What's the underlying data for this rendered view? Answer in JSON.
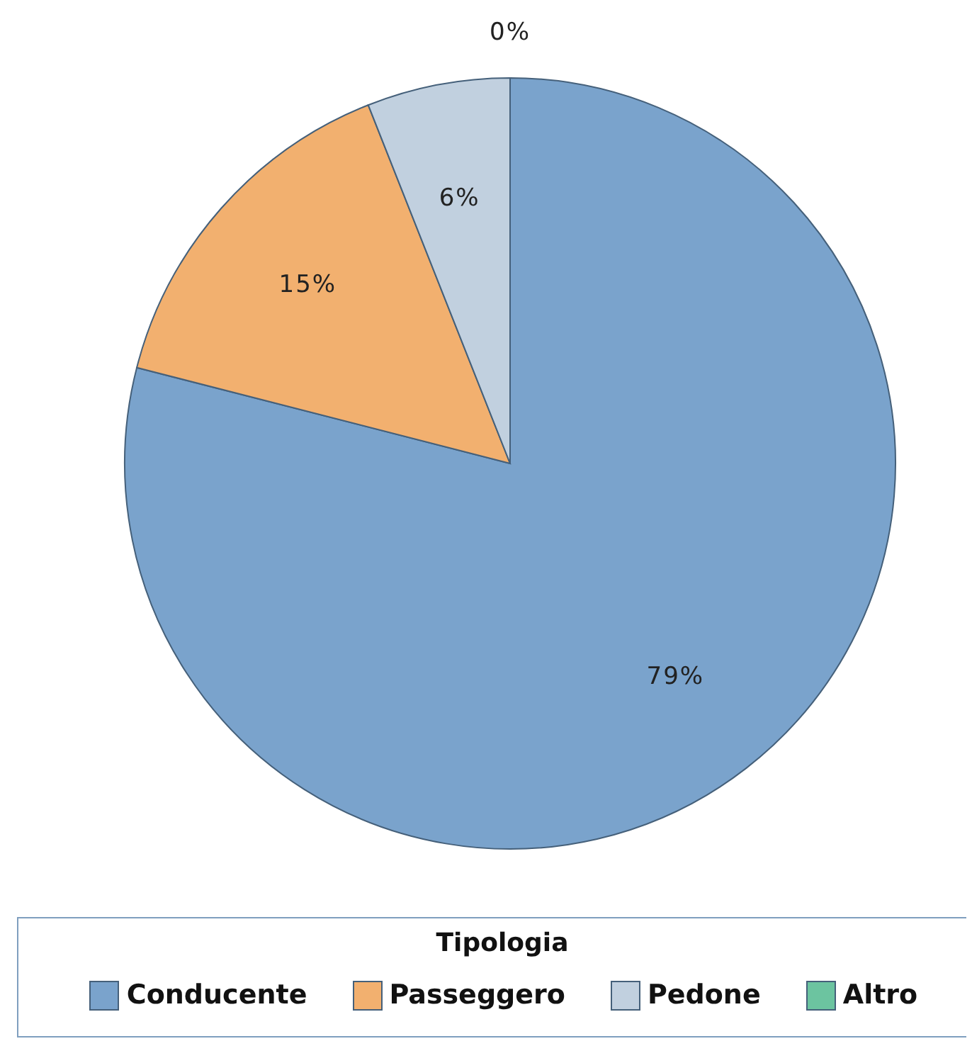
{
  "chart_data": {
    "type": "pie",
    "legend_title": "Tipologia",
    "categories": [
      "Conducente",
      "Passeggero",
      "Pedone",
      "Altro"
    ],
    "values": [
      79,
      15,
      6,
      0
    ],
    "colors": [
      "#7aa3cc",
      "#f2b06f",
      "#c1d0df",
      "#6cc4a0"
    ],
    "value_labels": [
      "79%",
      "15%",
      "6%",
      "0%"
    ],
    "legend": "bottom"
  }
}
